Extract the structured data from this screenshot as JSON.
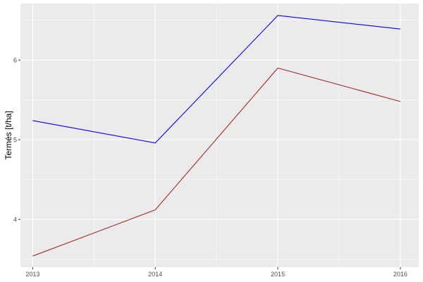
{
  "chart_data": {
    "type": "line",
    "title": "",
    "xlabel": "",
    "ylabel": "Termés [t/ha]",
    "x": [
      2013,
      2014,
      2015,
      2016
    ],
    "x_tick_labels": [
      "2013",
      "2014",
      "2015",
      "2016"
    ],
    "y_ticks": [
      4,
      5,
      6
    ],
    "y_tick_labels": [
      "4",
      "5",
      "6"
    ],
    "xlim": [
      2012.9,
      2016.15
    ],
    "ylim": [
      3.4,
      6.71
    ],
    "grid": true,
    "legend": "none",
    "panel_background": "#EBEBEB",
    "series": [
      {
        "color": "#0000FF",
        "values": [
          5.24,
          4.96,
          6.56,
          6.39
        ]
      },
      {
        "color": "#A52A2A",
        "values": [
          3.54,
          4.12,
          5.9,
          5.48
        ]
      }
    ]
  }
}
